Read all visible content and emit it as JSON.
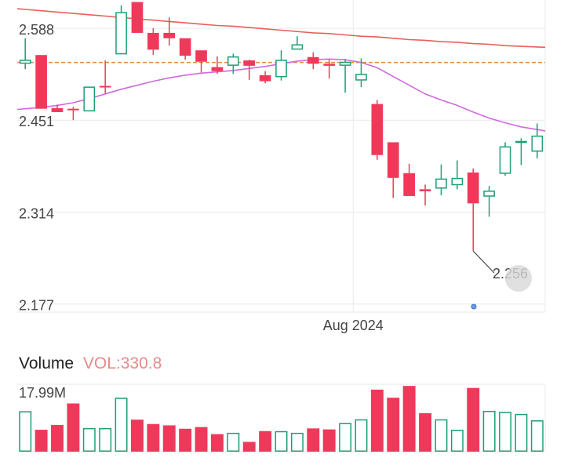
{
  "colors": {
    "up": "#1aa072",
    "down": "#f0395a",
    "ma_long": "#e8605a",
    "ma_short": "#cf6ae0",
    "ref_line": "#e08a3a",
    "grid": "#e9e9e9"
  },
  "volume_panel": {
    "title": "Volume",
    "value_label": "VOL:330.8",
    "max_label": "17.99M"
  },
  "chart_data": [
    {
      "type": "candlestick",
      "title": "",
      "y_ticks": [
        "2.588",
        "2.451",
        "2.314",
        "2.177"
      ],
      "y_tick_values": [
        2.588,
        2.451,
        2.314,
        2.177
      ],
      "ylim": [
        2.165,
        2.63
      ],
      "x_tick_label": "Aug 2024",
      "x_tick_index": 20.5,
      "grid": true,
      "low_label": "2.256",
      "low_index": 28,
      "reference_line": 2.537,
      "candles": [
        {
          "o": 2.535,
          "h": 2.573,
          "l": 2.527,
          "c": 2.541
        },
        {
          "o": 2.548,
          "h": 2.548,
          "l": 2.469,
          "c": 2.468
        },
        {
          "o": 2.469,
          "h": 2.474,
          "l": 2.464,
          "c": 2.463
        },
        {
          "o": 2.468,
          "h": 2.471,
          "l": 2.451,
          "c": 2.466
        },
        {
          "o": 2.464,
          "h": 2.501,
          "l": 2.464,
          "c": 2.501
        },
        {
          "o": 2.502,
          "h": 2.54,
          "l": 2.491,
          "c": 2.501
        },
        {
          "o": 2.549,
          "h": 2.622,
          "l": 2.549,
          "c": 2.612
        },
        {
          "o": 2.627,
          "h": 2.627,
          "l": 2.581,
          "c": 2.581
        },
        {
          "o": 2.581,
          "h": 2.588,
          "l": 2.548,
          "c": 2.556
        },
        {
          "o": 2.581,
          "h": 2.604,
          "l": 2.562,
          "c": 2.573
        },
        {
          "o": 2.573,
          "h": 2.573,
          "l": 2.541,
          "c": 2.547
        },
        {
          "o": 2.555,
          "h": 2.555,
          "l": 2.522,
          "c": 2.538
        },
        {
          "o": 2.53,
          "h": 2.546,
          "l": 2.52,
          "c": 2.524
        },
        {
          "o": 2.532,
          "h": 2.55,
          "l": 2.52,
          "c": 2.546
        },
        {
          "o": 2.54,
          "h": 2.541,
          "l": 2.511,
          "c": 2.532
        },
        {
          "o": 2.518,
          "h": 2.524,
          "l": 2.506,
          "c": 2.509
        },
        {
          "o": 2.515,
          "h": 2.555,
          "l": 2.51,
          "c": 2.541
        },
        {
          "o": 2.556,
          "h": 2.576,
          "l": 2.556,
          "c": 2.564
        },
        {
          "o": 2.545,
          "h": 2.552,
          "l": 2.527,
          "c": 2.535
        },
        {
          "o": 2.535,
          "h": 2.541,
          "l": 2.513,
          "c": 2.532
        },
        {
          "o": 2.532,
          "h": 2.542,
          "l": 2.492,
          "c": 2.538
        },
        {
          "o": 2.51,
          "h": 2.543,
          "l": 2.5,
          "c": 2.52
        },
        {
          "o": 2.475,
          "h": 2.481,
          "l": 2.392,
          "c": 2.399
        },
        {
          "o": 2.418,
          "h": 2.418,
          "l": 2.335,
          "c": 2.365
        },
        {
          "o": 2.372,
          "h": 2.386,
          "l": 2.339,
          "c": 2.338
        },
        {
          "o": 2.348,
          "h": 2.355,
          "l": 2.324,
          "c": 2.345
        },
        {
          "o": 2.349,
          "h": 2.385,
          "l": 2.339,
          "c": 2.364
        },
        {
          "o": 2.354,
          "h": 2.391,
          "l": 2.348,
          "c": 2.365
        },
        {
          "o": 2.373,
          "h": 2.379,
          "l": 2.256,
          "c": 2.327
        },
        {
          "o": 2.337,
          "h": 2.353,
          "l": 2.307,
          "c": 2.346
        },
        {
          "o": 2.371,
          "h": 2.418,
          "l": 2.368,
          "c": 2.412
        },
        {
          "o": 2.417,
          "h": 2.424,
          "l": 2.384,
          "c": 2.42
        },
        {
          "o": 2.404,
          "h": 2.446,
          "l": 2.394,
          "c": 2.428
        }
      ],
      "ma_long": [
        2.616,
        2.614,
        2.612,
        2.61,
        2.608,
        2.606,
        2.604,
        2.602,
        2.6,
        2.598,
        2.596,
        2.594,
        2.592,
        2.591,
        2.589,
        2.587,
        2.585,
        2.583,
        2.581,
        2.58,
        2.578,
        2.576,
        2.575,
        2.573,
        2.571,
        2.57,
        2.568,
        2.567,
        2.565,
        2.564,
        2.562,
        2.561,
        2.56
      ],
      "ma_short": [
        2.468,
        2.47,
        2.473,
        2.477,
        2.483,
        2.49,
        2.497,
        2.503,
        2.509,
        2.514,
        2.518,
        2.521,
        2.523,
        2.525,
        2.528,
        2.531,
        2.535,
        2.539,
        2.541,
        2.542,
        2.541,
        2.537,
        2.529,
        2.516,
        2.503,
        2.49,
        2.481,
        2.473,
        2.463,
        2.454,
        2.447,
        2.441,
        2.437
      ]
    },
    {
      "type": "bar",
      "title": "Volume",
      "max_label": "17.99M",
      "ylim": [
        0,
        20.0
      ],
      "values": [
        12.0,
        6.5,
        7.9,
        14.3,
        7.0,
        7.0,
        16.0,
        9.5,
        8.2,
        7.8,
        6.8,
        7.3,
        5.2,
        5.6,
        2.9,
        6.1,
        6.1,
        5.6,
        6.9,
        6.6,
        8.5,
        9.6,
        18.4,
        16.0,
        19.5,
        11.4,
        9.6,
        6.5,
        18.9,
        12.1,
        11.8,
        11.2,
        9.3
      ],
      "directions": [
        "up",
        "down",
        "down",
        "down",
        "up",
        "up",
        "up",
        "down",
        "down",
        "down",
        "down",
        "down",
        "down",
        "up",
        "down",
        "down",
        "up",
        "up",
        "down",
        "down",
        "up",
        "up",
        "down",
        "down",
        "down",
        "down",
        "up",
        "up",
        "down",
        "up",
        "up",
        "up",
        "up"
      ]
    }
  ]
}
